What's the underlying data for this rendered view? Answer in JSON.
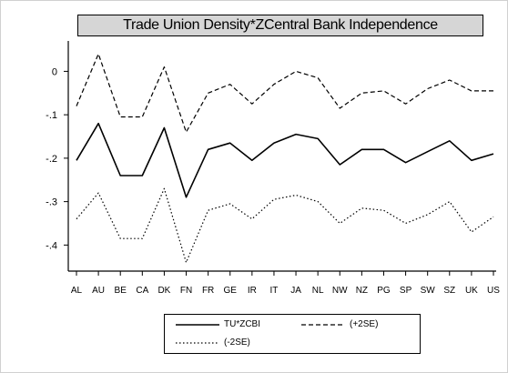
{
  "chart_data": {
    "type": "line",
    "title": "Trade Union Density*ZCentral Bank Independence",
    "xlabel": "",
    "ylabel": "",
    "categories": [
      "AL",
      "AU",
      "BE",
      "CA",
      "DK",
      "FN",
      "FR",
      "GE",
      "IR",
      "IT",
      "JA",
      "NL",
      "NW",
      "NZ",
      "PG",
      "SP",
      "SW",
      "SZ",
      "UK",
      "US"
    ],
    "x_tick_labels": [
      "AL",
      "AU",
      "BE",
      "CA",
      "DK",
      "FN",
      "FR",
      "GE",
      "IR",
      "IT",
      "JA",
      "NL",
      "NW",
      "NZ",
      "PG",
      "SP",
      "SW",
      "SZ",
      "UK",
      "US"
    ],
    "ylim": [
      -0.46,
      0.07
    ],
    "yticks": [
      0,
      -0.1,
      -0.2,
      -0.3,
      -0.4
    ],
    "ytick_labels": [
      "0",
      "-.1",
      "-.2",
      "-.3",
      "-.4"
    ],
    "grid": false,
    "legend_position": "bottom",
    "series": [
      {
        "name": "TU*ZCBI",
        "style": "solid",
        "color": "#000000",
        "values": [
          -0.205,
          -0.12,
          -0.24,
          -0.24,
          -0.13,
          -0.29,
          -0.18,
          -0.165,
          -0.205,
          -0.165,
          -0.145,
          -0.155,
          -0.215,
          -0.18,
          -0.18,
          -0.21,
          -0.185,
          -0.16,
          -0.205,
          -0.19
        ]
      },
      {
        "name": "(+2SE)",
        "style": "dashed",
        "color": "#000000",
        "values": [
          -0.08,
          0.04,
          -0.105,
          -0.105,
          0.01,
          -0.14,
          -0.05,
          -0.03,
          -0.075,
          -0.03,
          0.0,
          -0.015,
          -0.085,
          -0.05,
          -0.045,
          -0.075,
          -0.04,
          -0.02,
          -0.045,
          -0.045
        ]
      },
      {
        "name": "(-2SE)",
        "style": "dotted",
        "color": "#000000",
        "values": [
          -0.34,
          -0.28,
          -0.385,
          -0.385,
          -0.27,
          -0.44,
          -0.32,
          -0.305,
          -0.34,
          -0.295,
          -0.285,
          -0.3,
          -0.35,
          -0.315,
          -0.32,
          -0.35,
          -0.33,
          -0.3,
          -0.37,
          -0.335
        ]
      }
    ]
  }
}
